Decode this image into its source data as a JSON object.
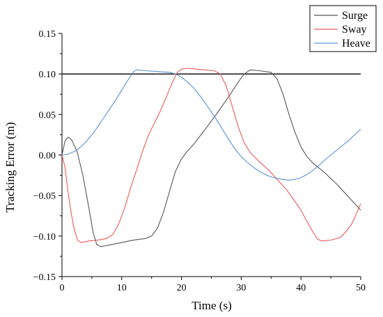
{
  "chart_data": {
    "type": "line",
    "xlabel": "Time (s)",
    "ylabel": "Tracking Error (m)",
    "xlim": [
      0,
      50
    ],
    "ylim": [
      -0.15,
      0.15
    ],
    "x_ticks": [
      0,
      10,
      20,
      30,
      40,
      50
    ],
    "x_tick_labels": [
      "0",
      "10",
      "20",
      "30",
      "40",
      "50"
    ],
    "y_ticks": [
      -0.15,
      -0.1,
      -0.05,
      0.0,
      0.05,
      0.1,
      0.15
    ],
    "y_tick_labels": [
      "−0.15",
      "−0.10",
      "−0.05",
      "0.00",
      "0.05",
      "0.10",
      "0.15"
    ],
    "grid": false,
    "legend_position": "top-right",
    "reference_line": {
      "y": 0.1,
      "color": "#000000"
    },
    "series": [
      {
        "name": "Surge",
        "color": "#555555",
        "points": [
          [
            0,
            0
          ],
          [
            0.5,
            0.017
          ],
          [
            1,
            0.022
          ],
          [
            1.6,
            0.019
          ],
          [
            2.5,
            0.005
          ],
          [
            3.5,
            -0.025
          ],
          [
            4.5,
            -0.065
          ],
          [
            5.2,
            -0.095
          ],
          [
            5.8,
            -0.11
          ],
          [
            6.5,
            -0.113
          ],
          [
            8,
            -0.111
          ],
          [
            10,
            -0.108
          ],
          [
            12,
            -0.105
          ],
          [
            14,
            -0.103
          ],
          [
            15,
            -0.1
          ],
          [
            16,
            -0.09
          ],
          [
            17,
            -0.07
          ],
          [
            18,
            -0.045
          ],
          [
            19,
            -0.02
          ],
          [
            20,
            -0.005
          ],
          [
            21,
            0.005
          ],
          [
            22,
            0.013
          ],
          [
            24,
            0.032
          ],
          [
            26,
            0.052
          ],
          [
            28,
            0.073
          ],
          [
            29.5,
            0.09
          ],
          [
            30.5,
            0.1
          ],
          [
            31.5,
            0.105
          ],
          [
            33,
            0.104
          ],
          [
            35,
            0.102
          ],
          [
            36,
            0.094
          ],
          [
            37,
            0.075
          ],
          [
            38,
            0.05
          ],
          [
            39,
            0.028
          ],
          [
            40,
            0.01
          ],
          [
            41,
            -0.002
          ],
          [
            42,
            -0.01
          ],
          [
            44,
            -0.022
          ],
          [
            46,
            -0.036
          ],
          [
            48,
            -0.052
          ],
          [
            50,
            -0.068
          ]
        ]
      },
      {
        "name": "Sway",
        "color": "#e85a5a",
        "points": [
          [
            0,
            0
          ],
          [
            0.5,
            -0.015
          ],
          [
            1,
            -0.045
          ],
          [
            1.5,
            -0.07
          ],
          [
            2,
            -0.09
          ],
          [
            2.6,
            -0.105
          ],
          [
            3.2,
            -0.108
          ],
          [
            4.5,
            -0.106
          ],
          [
            6,
            -0.105
          ],
          [
            7.5,
            -0.103
          ],
          [
            8.5,
            -0.098
          ],
          [
            9.5,
            -0.085
          ],
          [
            10.5,
            -0.065
          ],
          [
            11.5,
            -0.04
          ],
          [
            12.5,
            -0.018
          ],
          [
            13.5,
            0.005
          ],
          [
            14.5,
            0.025
          ],
          [
            15.5,
            0.04
          ],
          [
            16.5,
            0.055
          ],
          [
            17.5,
            0.072
          ],
          [
            18.5,
            0.09
          ],
          [
            19.3,
            0.102
          ],
          [
            20,
            0.106
          ],
          [
            21,
            0.107
          ],
          [
            22.5,
            0.106
          ],
          [
            24,
            0.105
          ],
          [
            25.5,
            0.104
          ],
          [
            26.5,
            0.1
          ],
          [
            27.5,
            0.085
          ],
          [
            28.5,
            0.06
          ],
          [
            29.5,
            0.035
          ],
          [
            30.5,
            0.015
          ],
          [
            31.5,
            0.003
          ],
          [
            33,
            -0.008
          ],
          [
            34.5,
            -0.018
          ],
          [
            36,
            -0.03
          ],
          [
            37.5,
            -0.042
          ],
          [
            38.5,
            -0.052
          ],
          [
            40,
            -0.068
          ],
          [
            41,
            -0.082
          ],
          [
            42,
            -0.095
          ],
          [
            42.8,
            -0.104
          ],
          [
            43.5,
            -0.106
          ],
          [
            45,
            -0.105
          ],
          [
            46.5,
            -0.102
          ],
          [
            47.5,
            -0.095
          ],
          [
            48.5,
            -0.085
          ],
          [
            49.3,
            -0.072
          ],
          [
            50,
            -0.06
          ]
        ]
      },
      {
        "name": "Heave",
        "color": "#5a8fd6",
        "points": [
          [
            0,
            0
          ],
          [
            1,
            0.001
          ],
          [
            2,
            0.004
          ],
          [
            3,
            0.009
          ],
          [
            4,
            0.016
          ],
          [
            5,
            0.025
          ],
          [
            6,
            0.035
          ],
          [
            7,
            0.046
          ],
          [
            8,
            0.057
          ],
          [
            9,
            0.068
          ],
          [
            10,
            0.08
          ],
          [
            11,
            0.092
          ],
          [
            12,
            0.103
          ],
          [
            12.5,
            0.105
          ],
          [
            14,
            0.104
          ],
          [
            16,
            0.103
          ],
          [
            18,
            0.102
          ],
          [
            19,
            0.1
          ],
          [
            20,
            0.096
          ],
          [
            21,
            0.09
          ],
          [
            22,
            0.083
          ],
          [
            23,
            0.074
          ],
          [
            24,
            0.064
          ],
          [
            25,
            0.053
          ],
          [
            26,
            0.042
          ],
          [
            27,
            0.03
          ],
          [
            28,
            0.018
          ],
          [
            29,
            0.007
          ],
          [
            30,
            -0.002
          ],
          [
            31,
            -0.009
          ],
          [
            32,
            -0.015
          ],
          [
            33,
            -0.02
          ],
          [
            34,
            -0.024
          ],
          [
            35,
            -0.027
          ],
          [
            36,
            -0.029
          ],
          [
            37,
            -0.03
          ],
          [
            38,
            -0.031
          ],
          [
            39,
            -0.03
          ],
          [
            40,
            -0.028
          ],
          [
            41,
            -0.024
          ],
          [
            42,
            -0.019
          ],
          [
            43,
            -0.013
          ],
          [
            44,
            -0.006
          ],
          [
            45,
            0.0
          ],
          [
            46,
            0.006
          ],
          [
            47,
            0.012
          ],
          [
            48,
            0.018
          ],
          [
            49,
            0.025
          ],
          [
            50,
            0.032
          ]
        ]
      }
    ]
  }
}
